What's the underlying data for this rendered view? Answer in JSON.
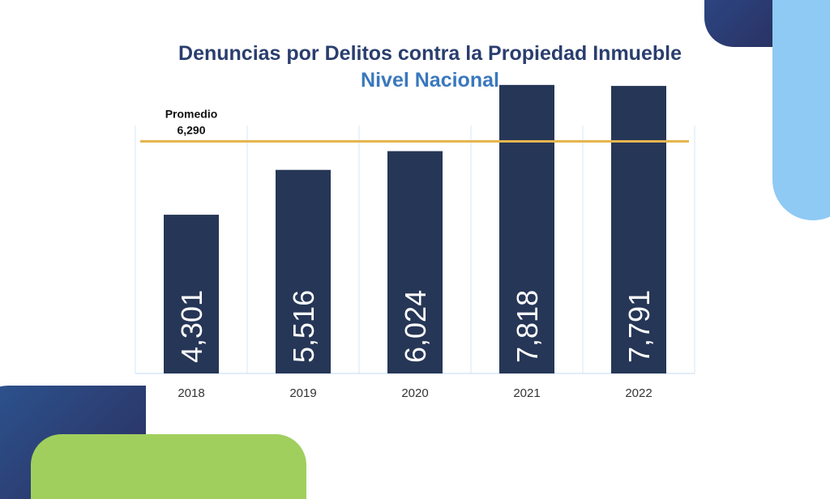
{
  "colors": {
    "bar": "#263656",
    "average_line": "#e5b550",
    "title_primary": "#2a3e6e",
    "title_secondary": "#3a78bd",
    "grid": "#d7e7f6"
  },
  "chart_data": {
    "type": "bar",
    "title": "Denuncias por Delitos contra la Propiedad Inmueble",
    "subtitle": "Nivel Nacional",
    "categories": [
      "2018",
      "2019",
      "2020",
      "2021",
      "2022"
    ],
    "values": [
      4301,
      5516,
      6024,
      7818,
      7791
    ],
    "value_labels": [
      "4,301",
      "5,516",
      "6,024",
      "7,818",
      "7,791"
    ],
    "reference_line": {
      "label": "Promedio",
      "value": 6290,
      "value_label": "6,290"
    },
    "ylim": [
      0,
      9000
    ],
    "grid": true
  }
}
